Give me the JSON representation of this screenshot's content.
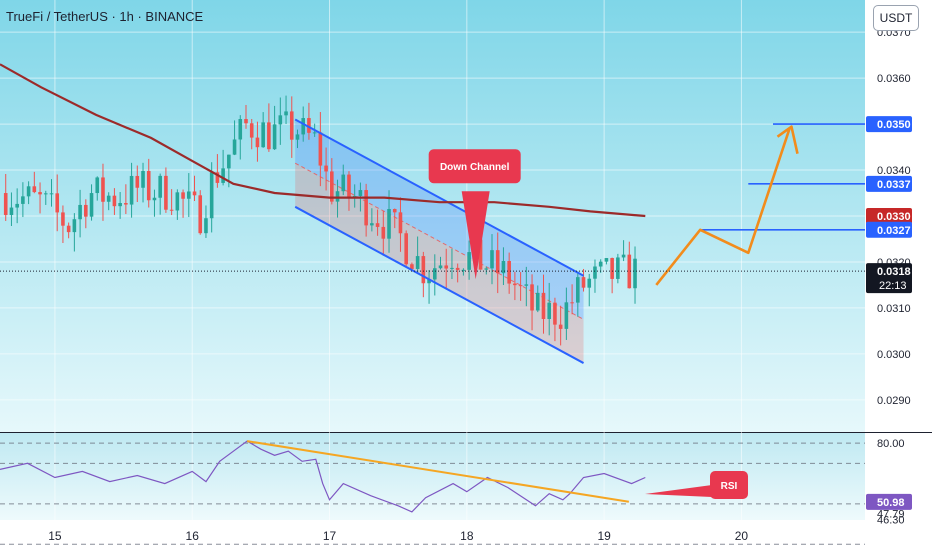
{
  "header": {
    "title": "TrueFi / TetherUS · 1h · BINANCE",
    "currency_button": "USDT"
  },
  "colors": {
    "background_top": "#7fd6e8",
    "background_bottom": "#e6f8fb",
    "up_candle": "#26a69a",
    "down_candle": "#ef5350",
    "moving_average": "#9c2a2a",
    "channel_line": "#2962ff",
    "projection": "#f28c1c",
    "callout": "#e8384f",
    "rsi_line": "#7e57c2",
    "trendline": "#f5a623"
  },
  "chart_data": [
    {
      "type": "candlestick",
      "symbol": "TrueFi / TetherUS",
      "timeframe": "1h",
      "exchange": "BINANCE",
      "x_ticks": [
        "15",
        "16",
        "17",
        "18",
        "19",
        "20"
      ],
      "x_range": [
        14.6,
        20.9
      ],
      "y_ticks": [
        "0.0370",
        "0.0360",
        "0.0350",
        "0.0340",
        "0.0330",
        "0.0320",
        "0.0310",
        "0.0300",
        "0.0290"
      ],
      "y_range": [
        0.0283,
        0.0377
      ],
      "grid": true,
      "ohlc_anchor_closes": [
        [
          14.6,
          0.0335
        ],
        [
          14.9,
          0.0333
        ],
        [
          15.1,
          0.0328
        ],
        [
          15.25,
          0.0335
        ],
        [
          15.45,
          0.0334
        ],
        [
          15.6,
          0.0336
        ],
        [
          15.85,
          0.0335
        ],
        [
          16.05,
          0.033
        ],
        [
          16.15,
          0.0338
        ],
        [
          16.3,
          0.0345
        ],
        [
          16.4,
          0.035
        ],
        [
          16.55,
          0.0348
        ],
        [
          16.75,
          0.0349
        ],
        [
          16.9,
          0.0346
        ],
        [
          17.0,
          0.0336
        ],
        [
          17.2,
          0.0334
        ],
        [
          17.5,
          0.0326
        ],
        [
          17.7,
          0.0318
        ],
        [
          17.9,
          0.0322
        ],
        [
          18.1,
          0.032
        ],
        [
          18.3,
          0.0317
        ],
        [
          18.5,
          0.0309
        ],
        [
          18.7,
          0.0309
        ],
        [
          18.85,
          0.0315
        ],
        [
          19.0,
          0.0317
        ],
        [
          19.25,
          0.0318
        ]
      ],
      "moving_average": [
        [
          14.6,
          0.0363
        ],
        [
          14.9,
          0.0358
        ],
        [
          15.3,
          0.0352
        ],
        [
          15.7,
          0.0347
        ],
        [
          16.0,
          0.0342
        ],
        [
          16.3,
          0.0337
        ],
        [
          16.6,
          0.0335
        ],
        [
          17.0,
          0.0334
        ],
        [
          17.4,
          0.0334
        ],
        [
          17.8,
          0.0333
        ],
        [
          18.2,
          0.0333
        ],
        [
          18.6,
          0.0332
        ],
        [
          18.9,
          0.0331
        ],
        [
          19.3,
          0.033
        ]
      ],
      "down_channel": {
        "upper": [
          [
            16.75,
            0.0351
          ],
          [
            18.85,
            0.0317
          ]
        ],
        "lower": [
          [
            16.75,
            0.0332
          ],
          [
            18.85,
            0.0298
          ]
        ],
        "mid": [
          [
            16.75,
            0.03415
          ],
          [
            18.85,
            0.03075
          ]
        ]
      },
      "projection_path": [
        [
          19.38,
          0.0315
        ],
        [
          19.7,
          0.0327
        ],
        [
          20.05,
          0.0322
        ],
        [
          20.35,
          0.0349
        ]
      ],
      "projection_target": 0.035,
      "horizontal_levels": [
        {
          "value": 0.035,
          "label": "0.0350",
          "x_from": 20.23
        },
        {
          "value": 0.0337,
          "label": "0.0337",
          "x_from": 20.05
        },
        {
          "value": 0.0327,
          "label": "0.0327",
          "x_from": 19.7
        }
      ],
      "price_labels": [
        {
          "label": "0.0350",
          "kind": "level"
        },
        {
          "label": "0.0337",
          "kind": "level"
        },
        {
          "label": "0.0330",
          "kind": "ma"
        },
        {
          "label": "0.0327",
          "kind": "level"
        },
        {
          "label": "0.0318",
          "kind": "last"
        }
      ],
      "last_price": {
        "value": 0.0318,
        "label": "0.0318",
        "countdown": "22:13"
      },
      "annotations": [
        {
          "text": "Down Channel",
          "x": 18.05,
          "y": 0.0338
        }
      ]
    },
    {
      "type": "line",
      "name": "RSI",
      "y_range": [
        42,
        85
      ],
      "levels": [
        80,
        70,
        50,
        30
      ],
      "y_labels": [
        "80.00",
        "50.98",
        "47.79",
        "46.30"
      ],
      "current_value": "50.98",
      "series": [
        [
          14.6,
          67
        ],
        [
          14.8,
          70
        ],
        [
          15.0,
          63
        ],
        [
          15.2,
          66
        ],
        [
          15.4,
          61
        ],
        [
          15.6,
          64
        ],
        [
          15.8,
          60
        ],
        [
          16.0,
          66
        ],
        [
          16.1,
          61
        ],
        [
          16.2,
          71
        ],
        [
          16.3,
          76
        ],
        [
          16.4,
          81
        ],
        [
          16.5,
          77
        ],
        [
          16.6,
          74
        ],
        [
          16.7,
          76
        ],
        [
          16.8,
          71
        ],
        [
          16.9,
          72
        ],
        [
          16.95,
          60
        ],
        [
          17.0,
          52
        ],
        [
          17.1,
          60
        ],
        [
          17.3,
          54
        ],
        [
          17.5,
          49
        ],
        [
          17.6,
          46
        ],
        [
          17.7,
          53
        ],
        [
          17.9,
          60
        ],
        [
          18.0,
          56
        ],
        [
          18.15,
          63
        ],
        [
          18.3,
          58
        ],
        [
          18.5,
          49
        ],
        [
          18.6,
          55
        ],
        [
          18.7,
          52
        ],
        [
          18.75,
          55
        ],
        [
          18.85,
          63
        ],
        [
          19.0,
          65
        ],
        [
          19.2,
          60
        ],
        [
          19.3,
          63
        ]
      ],
      "trendline": [
        [
          16.4,
          81
        ],
        [
          19.18,
          51
        ]
      ],
      "callout": {
        "text": "RSI"
      }
    }
  ]
}
